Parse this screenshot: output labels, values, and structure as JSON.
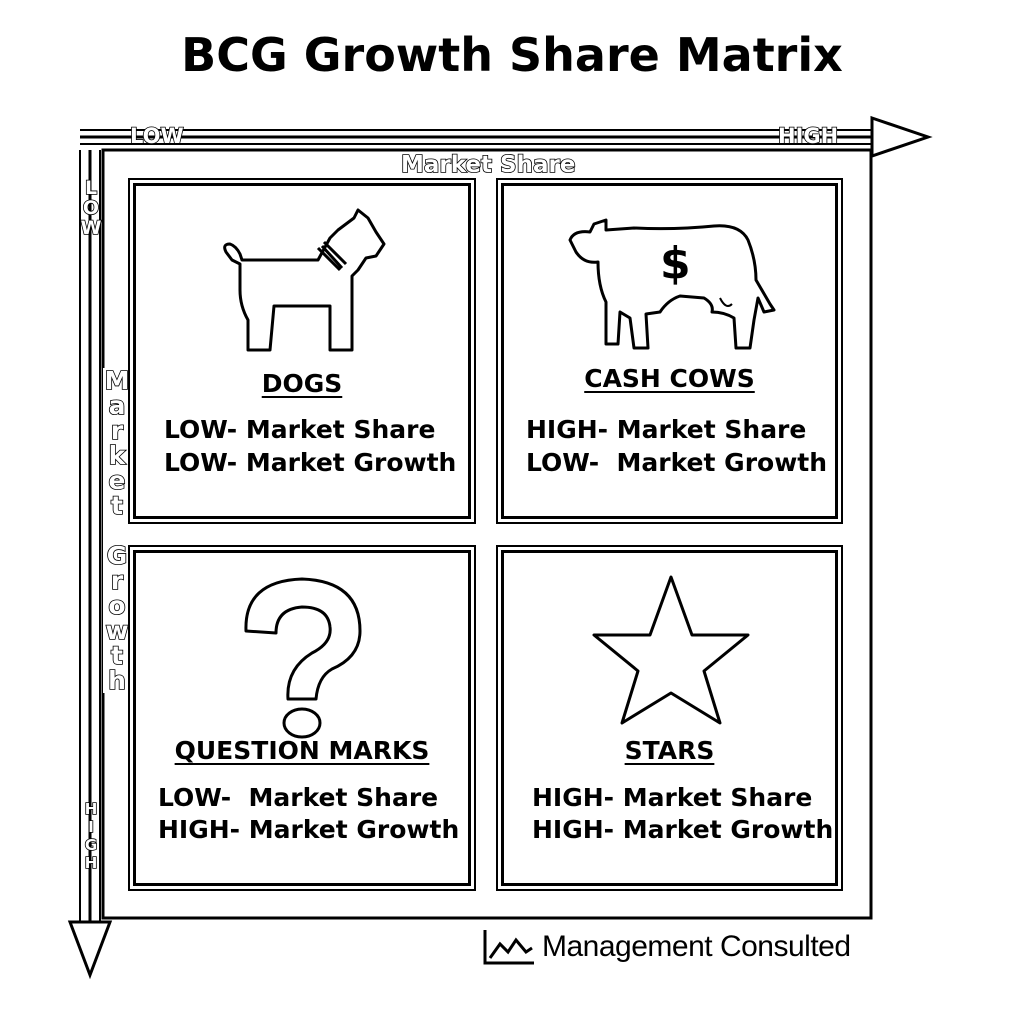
{
  "title": "BCG Growth Share Matrix",
  "axes": {
    "x_low": "LOW",
    "x_high": "HIGH",
    "x_label": "Market Share",
    "y_low": "LOW",
    "y_high": "HIGH",
    "y_label": "Market Growth"
  },
  "quadrants": [
    {
      "name": "DOGS",
      "line1": "LOW- Market Share",
      "line2": "LOW- Market Growth",
      "icon": "dog-icon"
    },
    {
      "name": "CASH COWS",
      "line1": "HIGH- Market Share",
      "line2": "LOW-  Market Growth",
      "icon": "cow-icon",
      "icon_symbol": "$"
    },
    {
      "name": "QUESTION MARKS",
      "line1": "LOW-  Market Share",
      "line2": "HIGH- Market Growth",
      "icon": "question-mark-icon"
    },
    {
      "name": "STARS",
      "line1": "HIGH- Market Share",
      "line2": "HIGH- Market Growth",
      "icon": "star-icon"
    }
  ],
  "footer": {
    "brand": "Management Consulted",
    "icon": "chart-logo-icon"
  }
}
